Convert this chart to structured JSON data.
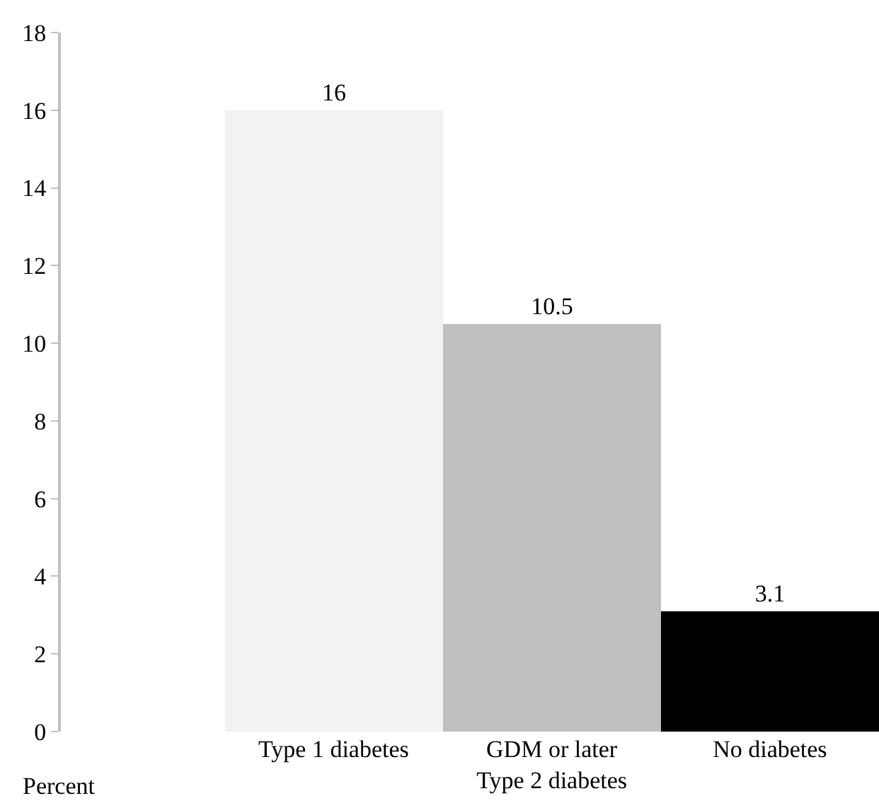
{
  "chart_data": {
    "type": "bar",
    "ylabel": "Percent",
    "categories": [
      "Type 1 diabetes",
      "GDM or later Type 2 diabetes",
      "No diabetes"
    ],
    "values": [
      16,
      10.5,
      3.1
    ],
    "colors": [
      "#f2f2f2",
      "#bfbfbf",
      "#000000"
    ],
    "ylim": [
      0,
      18
    ],
    "yticks": [
      0,
      2,
      4,
      6,
      8,
      10,
      12,
      14,
      16,
      18
    ],
    "data_labels": true
  }
}
